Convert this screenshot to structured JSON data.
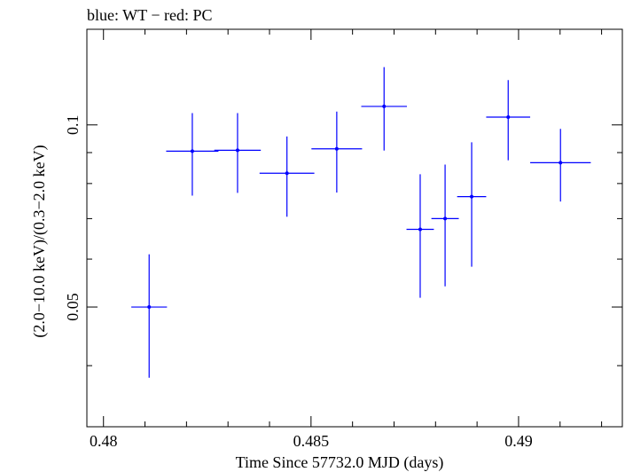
{
  "chart_data": {
    "type": "scatter",
    "title": "blue: WT − red: PC",
    "xlabel": "Time Since 57732.0 MJD (days)",
    "ylabel": "(2.0−10.0 keV)/(0.3−2.0 keV)",
    "xlim": [
      0.4796,
      0.4925
    ],
    "ylim": [
      0.0317,
      0.1439
    ],
    "y_scale": "log",
    "grid": false,
    "x_ticks": [
      {
        "value": 0.48,
        "label": "0.48"
      },
      {
        "value": 0.485,
        "label": "0.485"
      },
      {
        "value": 0.49,
        "label": "0.49"
      }
    ],
    "y_ticks": [
      {
        "value": 0.05,
        "label": "0.05"
      },
      {
        "value": 0.1,
        "label": "0.1"
      }
    ],
    "series": [
      {
        "color": "#0000ff",
        "points": [
          {
            "x": 0.4811,
            "xerr": 0.00043,
            "y": 0.05,
            "ylo": 0.0382,
            "yhi": 0.0611
          },
          {
            "x": 0.48214,
            "xerr": 0.00063,
            "y": 0.0905,
            "ylo": 0.0764,
            "yhi": 0.1046
          },
          {
            "x": 0.48323,
            "xerr": 0.00056,
            "y": 0.0908,
            "ylo": 0.0772,
            "yhi": 0.1046
          },
          {
            "x": 0.48442,
            "xerr": 0.00066,
            "y": 0.0832,
            "ylo": 0.0705,
            "yhi": 0.0957
          },
          {
            "x": 0.48562,
            "xerr": 0.00061,
            "y": 0.0913,
            "ylo": 0.0773,
            "yhi": 0.1052
          },
          {
            "x": 0.48676,
            "xerr": 0.00055,
            "y": 0.1073,
            "ylo": 0.0907,
            "yhi": 0.1246
          },
          {
            "x": 0.48763,
            "xerr": 0.00033,
            "y": 0.0672,
            "ylo": 0.0518,
            "yhi": 0.0829
          },
          {
            "x": 0.48823,
            "xerr": 0.00033,
            "y": 0.07,
            "ylo": 0.0541,
            "yhi": 0.086
          },
          {
            "x": 0.48887,
            "xerr": 0.00035,
            "y": 0.0761,
            "ylo": 0.0583,
            "yhi": 0.0936
          },
          {
            "x": 0.48975,
            "xerr": 0.00053,
            "y": 0.103,
            "ylo": 0.0874,
            "yhi": 0.1186
          },
          {
            "x": 0.49101,
            "xerr": 0.00073,
            "y": 0.0866,
            "ylo": 0.0747,
            "yhi": 0.0985
          }
        ]
      }
    ]
  }
}
